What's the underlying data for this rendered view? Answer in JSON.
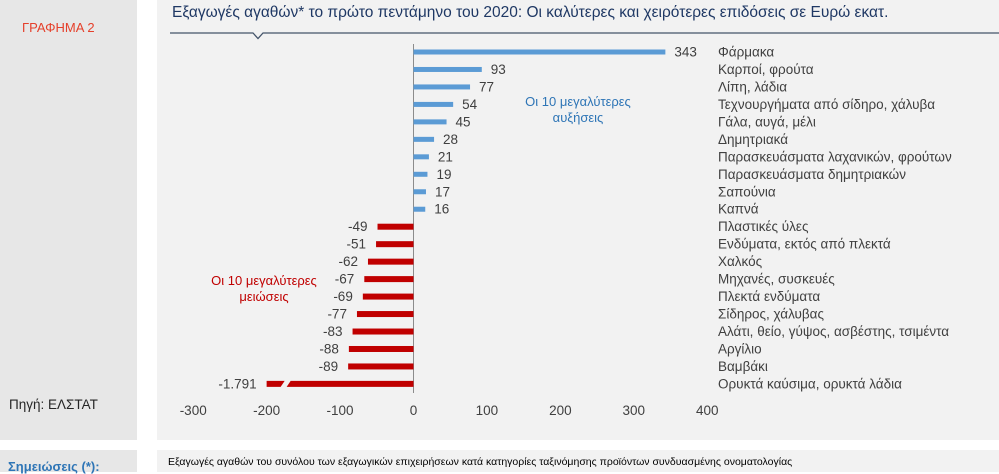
{
  "figure": {
    "label": "ΓΡΑΦΗΜΑ 2",
    "source": "Πηγή: ΕΛΣΤΑΤ"
  },
  "notes": {
    "label": "Σημειώσεις (*):",
    "text": "Εξαγωγές αγαθών του συνόλου των εξαγωγικών επιχειρήσεων κατά κατηγορίες ταξινόμησης προϊόντων συνδυασμένης ονοματολογίας"
  },
  "chart_data": {
    "type": "bar",
    "orientation": "horizontal",
    "title": "Εξαγωγές αγαθών* το πρώτο πεντάμηνο του 2020: Οι καλύτερες και χειρότερες επιδόσεις σε Ευρώ εκατ.",
    "xlabel": "",
    "ylabel": "",
    "xlim": [
      -300,
      400
    ],
    "xticks": [
      -300,
      -200,
      -100,
      0,
      100,
      200,
      300,
      400
    ],
    "xtick_labels": [
      "-300",
      "-200",
      "-100",
      "0",
      "100",
      "200",
      "300",
      "400"
    ],
    "categories": [
      "Φάρμακα",
      "Καρποί, φρούτα",
      "Λίπη, λάδια",
      "Τεχνουργήματα από σίδηρο, χάλυβα",
      "Γάλα, αυγά, μέλι",
      "Δημητριακά",
      "Παρασκευάσματα λαχανικών, φρούτων",
      "Παρασκευάσματα δημητριακών",
      "Σαπούνια",
      "Καπνά",
      "Πλαστικές ύλες",
      "Ενδύματα, εκτός από πλεκτά",
      "Χαλκός",
      "Μηχανές, συσκευές",
      "Πλεκτά ενδύματα",
      "Σίδηρος, χάλυβας",
      "Αλάτι, θείο, γύψος, ασβέστης, τσιμέντα",
      "Αργίλιο",
      "Βαμβάκι",
      "Ορυκτά καύσιμα, ορυκτά λάδια"
    ],
    "values": [
      343,
      93,
      77,
      54,
      45,
      28,
      21,
      19,
      17,
      16,
      -49,
      -51,
      -62,
      -67,
      -69,
      -77,
      -83,
      -88,
      -89,
      -1791
    ],
    "value_labels": [
      "343",
      "93",
      "77",
      "54",
      "45",
      "28",
      "21",
      "19",
      "17",
      "16",
      "-49",
      "-51",
      "-62",
      "-67",
      "-69",
      "-77",
      "-83",
      "-88",
      "-89",
      "-1.791"
    ],
    "colors": {
      "increase": "#5b9bd5",
      "decrease": "#c00000"
    },
    "annotations": [
      {
        "lines": [
          "Οι 10 μεγαλύτερες",
          "αυξήσεις"
        ],
        "color": "#2e75b6"
      },
      {
        "lines": [
          "Οι 10 μεγαλύτερες",
          "μειώσεις"
        ],
        "color": "#c00000"
      }
    ],
    "grid": false,
    "legend": "none"
  }
}
